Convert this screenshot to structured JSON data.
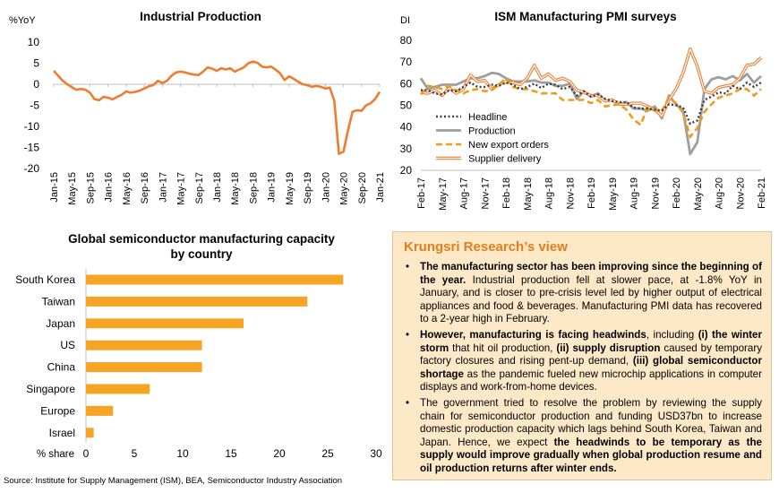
{
  "chart_data": [
    {
      "type": "line",
      "title": "Industrial Production",
      "ylabel": "%YoY",
      "ylim": [
        -20,
        10
      ],
      "yticks": [
        "10",
        "5",
        "0",
        "-5",
        "-10",
        "-15",
        "-20"
      ],
      "xticks": [
        "Jan-15",
        "May-15",
        "Sep-15",
        "Jan-16",
        "May-16",
        "Sep-16",
        "Jan-17",
        "May-17",
        "Sep-17",
        "Jan-18",
        "May-18",
        "Sep-18",
        "Jan-19",
        "May-19",
        "Sep-19",
        "Jan-20",
        "May-20",
        "Sep-20",
        "Jan-21"
      ],
      "x": [
        "Jan-15",
        "Feb-15",
        "Mar-15",
        "Apr-15",
        "May-15",
        "Jun-15",
        "Jul-15",
        "Aug-15",
        "Sep-15",
        "Oct-15",
        "Nov-15",
        "Dec-15",
        "Jan-16",
        "Feb-16",
        "Mar-16",
        "Apr-16",
        "May-16",
        "Jun-16",
        "Jul-16",
        "Aug-16",
        "Sep-16",
        "Oct-16",
        "Nov-16",
        "Dec-16",
        "Jan-17",
        "Feb-17",
        "Mar-17",
        "Apr-17",
        "May-17",
        "Jun-17",
        "Jul-17",
        "Aug-17",
        "Sep-17",
        "Oct-17",
        "Nov-17",
        "Dec-17",
        "Jan-18",
        "Feb-18",
        "Mar-18",
        "Apr-18",
        "May-18",
        "Jun-18",
        "Jul-18",
        "Aug-18",
        "Sep-18",
        "Oct-18",
        "Nov-18",
        "Dec-18",
        "Jan-19",
        "Feb-19",
        "Mar-19",
        "Apr-19",
        "May-19",
        "Jun-19",
        "Jul-19",
        "Aug-19",
        "Sep-19",
        "Oct-19",
        "Nov-19",
        "Dec-19",
        "Jan-20",
        "Feb-20",
        "Mar-20",
        "Apr-20",
        "May-20",
        "Jun-20",
        "Jul-20",
        "Aug-20",
        "Sep-20",
        "Oct-20",
        "Nov-20",
        "Dec-20",
        "Jan-21"
      ],
      "series": [
        {
          "color": "#ed7d31",
          "values": [
            3.2,
            2.0,
            0.8,
            0.0,
            -0.7,
            -1.3,
            -1.1,
            -1.3,
            -2.0,
            -3.5,
            -3.8,
            -3.0,
            -3.2,
            -3.6,
            -3.0,
            -2.5,
            -1.7,
            -2.0,
            -1.8,
            -1.5,
            -1.0,
            -0.5,
            -0.2,
            0.8,
            0.3,
            0.8,
            2.0,
            2.8,
            3.0,
            2.8,
            2.5,
            2.3,
            2.2,
            3.0,
            4.0,
            3.7,
            3.2,
            3.8,
            3.5,
            3.8,
            3.0,
            3.5,
            4.0,
            5.0,
            5.4,
            5.1,
            4.2,
            4.0,
            4.2,
            3.5,
            2.6,
            1.0,
            1.9,
            1.3,
            0.6,
            0.0,
            -0.2,
            -0.6,
            -0.4,
            -0.6,
            -1.0,
            -0.8,
            -4.0,
            -16.5,
            -16.0,
            -11.0,
            -6.5,
            -6.2,
            -6.3,
            -5.0,
            -4.5,
            -3.5,
            -1.8
          ]
        }
      ]
    },
    {
      "type": "line",
      "title": "ISM Manufacturing PMI surveys",
      "ylabel": "DI",
      "ylim": [
        20,
        80
      ],
      "yticks": [
        "80",
        "70",
        "60",
        "50",
        "40",
        "30",
        "20"
      ],
      "xticks": [
        "Feb-17",
        "May-17",
        "Aug-17",
        "Nov-17",
        "Feb-18",
        "May-18",
        "Aug-18",
        "Nov-18",
        "Feb-19",
        "May-19",
        "Aug-19",
        "Nov-19",
        "Feb-20",
        "May-20",
        "Aug-20",
        "Nov-20",
        "Feb-21"
      ],
      "x": [
        "Feb-17",
        "Mar-17",
        "Apr-17",
        "May-17",
        "Jun-17",
        "Jul-17",
        "Aug-17",
        "Sep-17",
        "Oct-17",
        "Nov-17",
        "Dec-17",
        "Jan-18",
        "Feb-18",
        "Mar-18",
        "Apr-18",
        "May-18",
        "Jun-18",
        "Jul-18",
        "Aug-18",
        "Sep-18",
        "Oct-18",
        "Nov-18",
        "Dec-18",
        "Jan-19",
        "Feb-19",
        "Mar-19",
        "Apr-19",
        "May-19",
        "Jun-19",
        "Jul-19",
        "Aug-19",
        "Sep-19",
        "Oct-19",
        "Nov-19",
        "Dec-19",
        "Jan-20",
        "Feb-20",
        "Mar-20",
        "Apr-20",
        "May-20",
        "Jun-20",
        "Jul-20",
        "Aug-20",
        "Sep-20",
        "Oct-20",
        "Nov-20",
        "Dec-20",
        "Jan-21",
        "Feb-21"
      ],
      "legend_position": "bottom-left",
      "series": [
        {
          "name": "Headline",
          "color": "#404040",
          "style": "dotted",
          "values": [
            57.0,
            57.0,
            55.5,
            55.0,
            57.0,
            56.5,
            58.5,
            60.5,
            58.5,
            58.5,
            59.5,
            59.0,
            60.5,
            59.5,
            57.5,
            58.5,
            60.0,
            58.0,
            60.0,
            59.5,
            57.5,
            58.5,
            54.5,
            56.5,
            54.0,
            55.0,
            53.0,
            52.0,
            51.5,
            51.5,
            49.0,
            48.5,
            48.5,
            48.0,
            47.5,
            50.5,
            50.0,
            49.0,
            41.5,
            43.0,
            52.5,
            54.0,
            56.0,
            55.5,
            59.0,
            57.5,
            60.5,
            58.5,
            60.5
          ]
        },
        {
          "name": "Production",
          "color": "#9e9e9e",
          "style": "solid-thick",
          "values": [
            62.5,
            57.5,
            58.5,
            59.5,
            59.5,
            59.5,
            61.0,
            62.5,
            62.5,
            63.5,
            65.0,
            64.5,
            62.5,
            61.0,
            61.0,
            61.0,
            61.5,
            60.5,
            60.5,
            59.0,
            59.0,
            60.0,
            53.0,
            56.5,
            54.0,
            55.5,
            52.0,
            52.5,
            50.5,
            51.5,
            48.5,
            48.5,
            47.5,
            49.5,
            44.0,
            54.5,
            50.5,
            47.5,
            27.5,
            33.0,
            57.5,
            62.0,
            63.0,
            62.0,
            63.5,
            61.5,
            64.5,
            60.5,
            63.5
          ]
        },
        {
          "name": "New export orders",
          "color": "#ed9c1e",
          "style": "dashed",
          "values": [
            55.0,
            59.0,
            58.5,
            57.5,
            59.0,
            57.0,
            55.5,
            57.0,
            57.5,
            56.5,
            57.0,
            59.5,
            62.5,
            58.5,
            57.5,
            57.5,
            56.5,
            55.5,
            55.5,
            55.5,
            52.5,
            52.5,
            52.5,
            52.5,
            51.0,
            52.5,
            49.5,
            50.0,
            50.5,
            48.0,
            43.5,
            41.0,
            49.0,
            47.5,
            47.5,
            53.5,
            51.0,
            46.5,
            35.5,
            39.5,
            47.0,
            50.5,
            53.5,
            54.5,
            55.5,
            57.5,
            57.5,
            54.5,
            57.5
          ]
        },
        {
          "name": "Supplier delivery",
          "color": "#ed7d31",
          "style": "double",
          "values": [
            56.0,
            55.5,
            57.0,
            54.5,
            58.0,
            55.5,
            57.5,
            64.0,
            61.0,
            61.5,
            57.5,
            59.5,
            61.0,
            60.5,
            59.5,
            62.5,
            68.5,
            62.5,
            64.5,
            61.5,
            62.5,
            61.0,
            57.0,
            56.0,
            54.5,
            54.5,
            52.0,
            52.5,
            50.5,
            50.5,
            51.0,
            51.0,
            49.5,
            48.0,
            45.0,
            52.5,
            57.5,
            65.0,
            76.0,
            68.0,
            56.5,
            55.5,
            58.2,
            59.0,
            59.5,
            62.5,
            68.5,
            69.0,
            72.0
          ]
        }
      ]
    },
    {
      "type": "bar",
      "orientation": "horizontal",
      "title": "Global semiconductor manufacturing capacity by country",
      "title_lines": [
        "Global semiconductor manufacturing capacity",
        "by country"
      ],
      "xlabel": "% share",
      "xlim": [
        0,
        30
      ],
      "xticks": [
        "0",
        "5",
        "10",
        "15",
        "20",
        "25",
        "30"
      ],
      "categories": [
        "South Korea",
        "Taiwan",
        "Japan",
        "US",
        "China",
        "Singapore",
        "Europe",
        "Israel"
      ],
      "values": [
        26.6,
        22.9,
        16.3,
        12.0,
        12.0,
        6.6,
        2.8,
        0.8
      ],
      "color": "#f5a423"
    }
  ],
  "view_panel": {
    "title": "Krungsri Research’s view",
    "bullet": "•",
    "items": [
      {
        "p1_bold": "The manufacturing sector has been improving since the beginning of the year.",
        "p2": " Industrial production fell at slower pace, at -1.8% YoY in January, and is closer to pre-crisis level led by higher output of electrical appliances and food & beverages. Manufacturing PMI data has recovered to a 2-year high in February."
      },
      {
        "p1_bold": "However, manufacturing is facing headwinds",
        "p2": ", including ",
        "p3_bold": "(i) the winter storm",
        "p4": " that hit oil production, ",
        "p5_bold": "(ii) supply disruption",
        "p6": " caused by temporary factory closures and rising pent-up demand, ",
        "p7_bold": "(iii) global semiconductor shortage",
        "p8": " as the pandemic fueled new microchip applications in computer displays and work-from-home devices."
      },
      {
        "p1": "The government tried to resolve the problem by reviewing the supply chain for semiconductor production and funding USD37bn to increase domestic production capacity which lags behind South Korea, Taiwan and Japan. Hence, we expect ",
        "p2_bold": "the headwinds to be temporary as the supply would improve gradually when global production resume and oil production returns after winter ends."
      }
    ]
  },
  "source": "Source: Institute for Supply Management (ISM), BEA, Semiconductor Industry Association"
}
